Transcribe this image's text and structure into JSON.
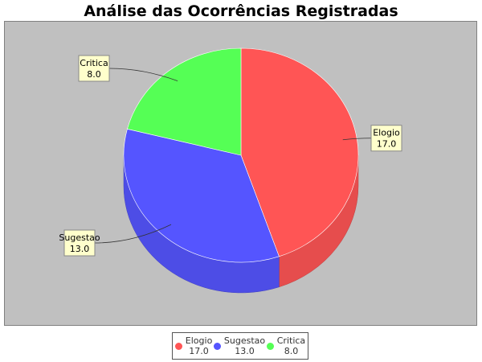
{
  "chart_data": {
    "type": "pie",
    "title": "Análise das Ocorrências Registradas",
    "slices": [
      {
        "name": "Elogio",
        "value": 17.0,
        "value_label": "17.0",
        "color": "#ff5555"
      },
      {
        "name": "Sugestao",
        "value": 13.0,
        "value_label": "13.0",
        "color": "#5555ff"
      },
      {
        "name": "Critica",
        "value": 8.0,
        "value_label": "8.0",
        "color": "#55ff55"
      }
    ],
    "style": "3d",
    "plot_background": "#c0c0c0",
    "label_background": "#ffffcc",
    "legend_position": "bottom"
  }
}
